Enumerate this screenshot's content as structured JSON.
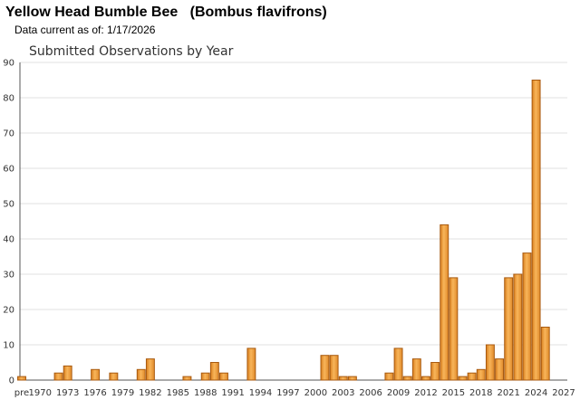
{
  "header": {
    "title": "Yellow Head Bumble Bee   (Bombus flavifrons)",
    "date_note": "Data current as of: 1/17/2026"
  },
  "chart_data": {
    "type": "bar",
    "title": "Submitted Observations by Year",
    "xlabel": "",
    "ylabel": "",
    "ylim": [
      0,
      90
    ],
    "yticks": [
      0,
      10,
      20,
      30,
      40,
      50,
      60,
      70,
      80,
      90
    ],
    "xlim": [
      1968,
      2027
    ],
    "xtick_labels": [
      "pre",
      "1970",
      "1973",
      "1976",
      "1979",
      "1982",
      "1985",
      "1988",
      "1991",
      "1994",
      "1997",
      "2000",
      "2003",
      "2006",
      "2009",
      "2012",
      "2015",
      "2018",
      "2021",
      "2024",
      "2027"
    ],
    "xtick_values": [
      1968,
      1970,
      1973,
      1976,
      1979,
      1982,
      1985,
      1988,
      1991,
      1994,
      1997,
      2000,
      2003,
      2006,
      2009,
      2012,
      2015,
      2018,
      2021,
      2024,
      2027
    ],
    "grid": true,
    "bar_color": "#f0a040",
    "bar_edge_color": "#a85a10",
    "categories": [
      "pre",
      "1972",
      "1973",
      "1976",
      "1978",
      "1981",
      "1982",
      "1986",
      "1988",
      "1989",
      "1990",
      "1993",
      "2001",
      "2002",
      "2003",
      "2004",
      "2008",
      "2009",
      "2010",
      "2011",
      "2012",
      "2013",
      "2014",
      "2015",
      "2016",
      "2017",
      "2018",
      "2019",
      "2020",
      "2021",
      "2022",
      "2023",
      "2024",
      "2025"
    ],
    "values": [
      1,
      2,
      4,
      3,
      2,
      3,
      6,
      1,
      2,
      5,
      2,
      9,
      7,
      7,
      1,
      1,
      2,
      9,
      1,
      6,
      1,
      5,
      44,
      29,
      1,
      2,
      3,
      10,
      6,
      29,
      30,
      36,
      85,
      15
    ]
  }
}
